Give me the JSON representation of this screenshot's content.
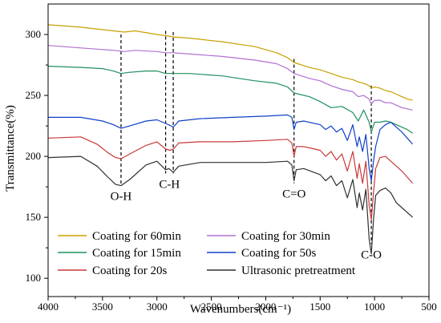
{
  "chart_data": {
    "type": "line",
    "xlabel": "Wavenumbers(cm⁻¹)",
    "ylabel": "Transmittance(%)",
    "xlim": [
      4000,
      500
    ],
    "ylim": [
      85,
      325
    ],
    "x_reversed": true,
    "x_ticks": [
      4000,
      3500,
      3000,
      2500,
      2000,
      1500,
      1000,
      500
    ],
    "y_ticks": [
      100,
      150,
      200,
      250,
      300
    ],
    "grid": false,
    "legend_placement": "bottom-left",
    "series": [
      {
        "name": "Coating for 60min",
        "color": "#c8a000",
        "x": [
          4000,
          3700,
          3400,
          3300,
          3200,
          3000,
          2920,
          2850,
          2700,
          2400,
          2100,
          1900,
          1800,
          1740,
          1600,
          1500,
          1400,
          1300,
          1200,
          1150,
          1100,
          1050,
          1030,
          1000,
          950,
          900,
          850,
          800,
          750,
          700,
          650
        ],
        "y": [
          308,
          306,
          303,
          302,
          303,
          300,
          299,
          298,
          297,
          294,
          290,
          285,
          281,
          277,
          273,
          271,
          268,
          265,
          263,
          261,
          260,
          258,
          256,
          257,
          256,
          254,
          253,
          251,
          249,
          247,
          246
        ]
      },
      {
        "name": "Coating for 30min",
        "color": "#b070d0",
        "x": [
          4000,
          3700,
          3400,
          3300,
          3200,
          3000,
          2920,
          2850,
          2700,
          2400,
          2100,
          1900,
          1800,
          1740,
          1600,
          1500,
          1400,
          1300,
          1200,
          1150,
          1100,
          1050,
          1030,
          1000,
          950,
          900,
          850,
          800,
          750,
          700,
          650
        ],
        "y": [
          291,
          289,
          287,
          286,
          287,
          286,
          285,
          285,
          284,
          282,
          279,
          276,
          272,
          268,
          264,
          262,
          258,
          255,
          253,
          249,
          250,
          247,
          243,
          246,
          246,
          244,
          244,
          242,
          240,
          239,
          238
        ]
      },
      {
        "name": "Coating for 15min",
        "color": "#1f8f5f",
        "x": [
          4000,
          3700,
          3500,
          3400,
          3330,
          3250,
          3100,
          3000,
          2920,
          2850,
          2700,
          2400,
          2100,
          1900,
          1800,
          1740,
          1600,
          1500,
          1400,
          1300,
          1200,
          1150,
          1100,
          1050,
          1030,
          1000,
          950,
          900,
          850,
          800,
          750,
          700,
          650
        ],
        "y": [
          274,
          273,
          272,
          270,
          268,
          269,
          270,
          270,
          268,
          268,
          268,
          266,
          262,
          260,
          257,
          252,
          249,
          245,
          240,
          241,
          236,
          229,
          238,
          228,
          220,
          228,
          228,
          229,
          228,
          226,
          224,
          222,
          219
        ]
      },
      {
        "name": "Coating for 50s",
        "color": "#1040c8",
        "x": [
          4000,
          3700,
          3500,
          3400,
          3330,
          3250,
          3100,
          3000,
          2920,
          2870,
          2850,
          2800,
          2600,
          2300,
          2000,
          1800,
          1760,
          1740,
          1720,
          1650,
          1500,
          1450,
          1400,
          1350,
          1300,
          1250,
          1200,
          1160,
          1140,
          1110,
          1080,
          1050,
          1030,
          1010,
          990,
          950,
          900,
          850,
          800,
          750,
          700,
          650
        ],
        "y": [
          232,
          232,
          229,
          226,
          223,
          225,
          229,
          230,
          227,
          225,
          224,
          229,
          231,
          232,
          233,
          234,
          232,
          222,
          228,
          229,
          226,
          222,
          225,
          220,
          223,
          213,
          226,
          208,
          216,
          204,
          218,
          190,
          180,
          196,
          208,
          222,
          226,
          228,
          224,
          220,
          215,
          210
        ]
      },
      {
        "name": "Coating for 20s",
        "color": "#c83838",
        "x": [
          4000,
          3700,
          3550,
          3450,
          3380,
          3330,
          3250,
          3100,
          3000,
          2920,
          2880,
          2850,
          2800,
          2600,
          2300,
          2000,
          1800,
          1760,
          1740,
          1720,
          1650,
          1500,
          1450,
          1400,
          1350,
          1300,
          1250,
          1200,
          1160,
          1140,
          1110,
          1080,
          1050,
          1030,
          1010,
          990,
          950,
          900,
          850,
          800,
          750,
          700,
          650
        ],
        "y": [
          215,
          216,
          210,
          203,
          199,
          198,
          202,
          209,
          212,
          206,
          205,
          206,
          211,
          212,
          212,
          213,
          214,
          211,
          200,
          208,
          208,
          205,
          200,
          204,
          197,
          202,
          188,
          204,
          182,
          194,
          178,
          196,
          160,
          148,
          170,
          190,
          199,
          200,
          196,
          192,
          188,
          183,
          178
        ]
      },
      {
        "name": "Ultrasonic pretreatment",
        "color": "#303030",
        "x": [
          4000,
          3700,
          3550,
          3450,
          3380,
          3330,
          3250,
          3100,
          3000,
          2920,
          2890,
          2850,
          2800,
          2600,
          2300,
          2000,
          1800,
          1760,
          1740,
          1720,
          1650,
          1500,
          1450,
          1400,
          1350,
          1300,
          1250,
          1200,
          1160,
          1140,
          1110,
          1080,
          1050,
          1030,
          1010,
          990,
          950,
          900,
          850,
          800,
          750,
          700,
          650
        ],
        "y": [
          199,
          200,
          192,
          183,
          177,
          176,
          181,
          193,
          196,
          189,
          190,
          187,
          192,
          195,
          195,
          195,
          196,
          193,
          180,
          189,
          190,
          185,
          180,
          184,
          176,
          180,
          166,
          181,
          158,
          170,
          156,
          173,
          132,
          120,
          148,
          168,
          172,
          174,
          170,
          162,
          158,
          154,
          150
        ]
      }
    ],
    "annotations": [
      {
        "text": "O-H",
        "x": 3330
      },
      {
        "text": "C-H",
        "x": 2920,
        "x2": 2850
      },
      {
        "text": "C=O",
        "x": 1740
      },
      {
        "text": "C-O",
        "x": 1030
      }
    ]
  }
}
